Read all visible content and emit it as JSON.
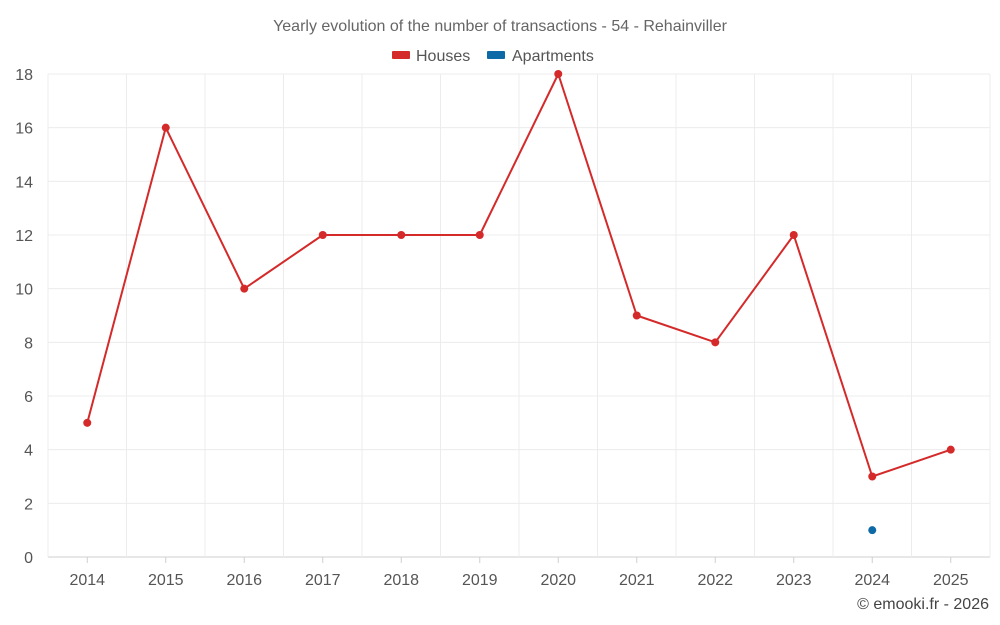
{
  "chart_data": {
    "type": "line",
    "title": "Yearly evolution of the number of transactions - 54 - Rehainviller",
    "categories": [
      "2014",
      "2015",
      "2016",
      "2017",
      "2018",
      "2019",
      "2020",
      "2021",
      "2022",
      "2023",
      "2024",
      "2025"
    ],
    "series": [
      {
        "name": "Houses",
        "color": "#d42a2a",
        "values": [
          5,
          16,
          10,
          12,
          12,
          12,
          18,
          9,
          8,
          12,
          3,
          4
        ]
      },
      {
        "name": "Apartments",
        "color": "#0e6aa6",
        "values": [
          null,
          null,
          null,
          null,
          null,
          null,
          null,
          null,
          null,
          null,
          1,
          null
        ]
      }
    ],
    "y_ticks": [
      0,
      2,
      4,
      6,
      8,
      10,
      12,
      14,
      16,
      18
    ],
    "ylim": [
      0,
      18
    ],
    "xlabel": "",
    "ylabel": "",
    "grid": true,
    "legend_position": "top-center"
  },
  "credit": "© emooki.fr - 2026"
}
